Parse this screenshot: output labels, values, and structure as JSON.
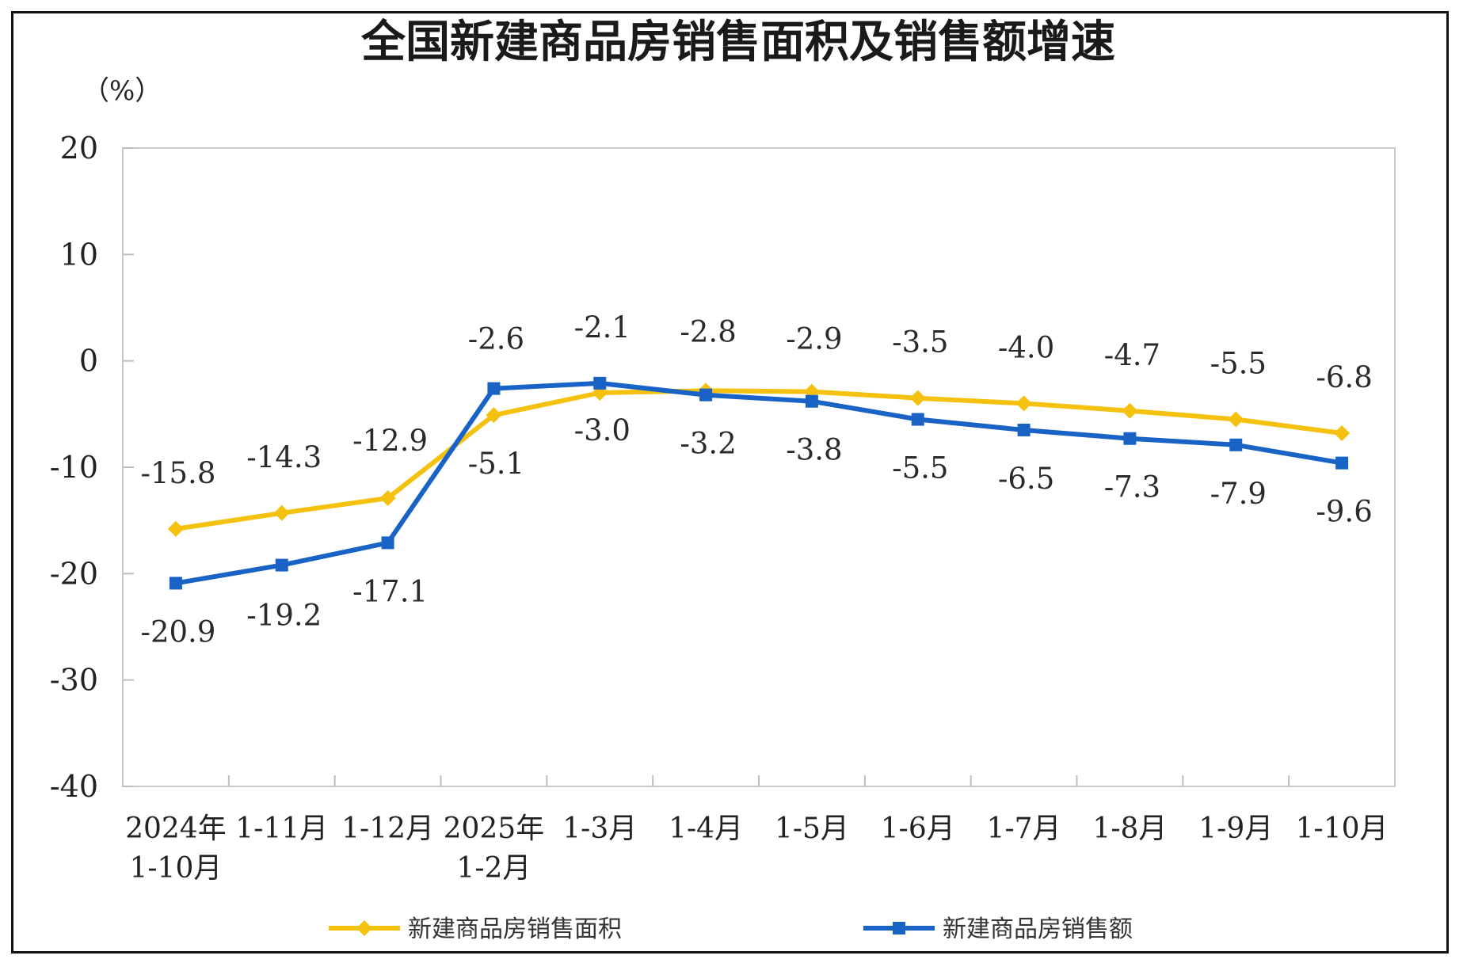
{
  "chart_data": {
    "type": "line",
    "title": "全国新建商品房销售面积及销售额增速",
    "unit_label": "（%）",
    "xlabel": "",
    "ylabel": "",
    "ylim": [
      -40,
      20
    ],
    "yticks": [
      20,
      10,
      0,
      -10,
      -20,
      -30,
      -40
    ],
    "categories": [
      [
        "2024年",
        "1-10月"
      ],
      [
        "1-11月"
      ],
      [
        "1-12月"
      ],
      [
        "2025年",
        "1-2月"
      ],
      [
        "1-3月"
      ],
      [
        "1-4月"
      ],
      [
        "1-5月"
      ],
      [
        "1-6月"
      ],
      [
        "1-7月"
      ],
      [
        "1-8月"
      ],
      [
        "1-9月"
      ],
      [
        "1-10月"
      ]
    ],
    "series": [
      {
        "name": "新建商品房销售面积",
        "color": "#F5C10F",
        "marker": "diamond",
        "values": [
          -15.8,
          -14.3,
          -12.9,
          -5.1,
          -3.0,
          -2.8,
          -2.9,
          -3.5,
          -4.0,
          -4.7,
          -5.5,
          -6.8
        ],
        "labels": [
          "-15.8",
          "-14.3",
          "-12.9",
          "-5.1",
          "-3.0",
          "-2.8",
          "-2.9",
          "-3.5",
          "-4.0",
          "-4.7",
          "-5.5",
          "-6.8"
        ]
      },
      {
        "name": "新建商品房销售额",
        "color": "#1A63C6",
        "marker": "square",
        "values": [
          -20.9,
          -19.2,
          -17.1,
          -2.6,
          -2.1,
          -3.2,
          -3.8,
          -5.5,
          -6.5,
          -7.3,
          -7.9,
          -9.6
        ],
        "labels": [
          "-20.9",
          "-19.2",
          "-17.1",
          "-2.6",
          "-2.1",
          "-3.2",
          "-3.8",
          "-5.5",
          "-6.5",
          "-7.3",
          "-7.9",
          "-9.6"
        ]
      }
    ],
    "grid": false,
    "legend_position": "bottom"
  }
}
